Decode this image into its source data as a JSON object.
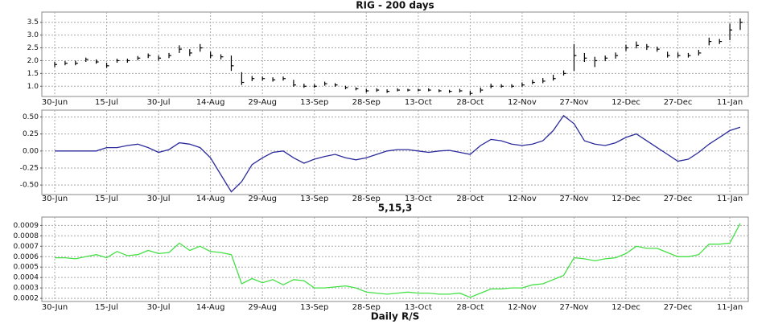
{
  "chart_data": [
    {
      "type": "ohlc",
      "title": "RIG - 200 days",
      "color": "#000000",
      "grid": true,
      "categories": [
        "30-Jun",
        null,
        null,
        null,
        null,
        "15-Jul",
        null,
        null,
        null,
        null,
        "30-Jul",
        null,
        null,
        null,
        null,
        "14-Aug",
        null,
        null,
        null,
        null,
        "29-Aug",
        null,
        null,
        null,
        null,
        "13-Sep",
        null,
        null,
        null,
        null,
        "28-Sep",
        null,
        null,
        null,
        null,
        "13-Oct",
        null,
        null,
        null,
        null,
        "28-Oct",
        null,
        null,
        null,
        null,
        "12-Nov",
        null,
        null,
        null,
        null,
        "27-Nov",
        null,
        null,
        null,
        null,
        "12-Dec",
        null,
        null,
        null,
        null,
        "27-Dec",
        null,
        null,
        null,
        null,
        "11-Jan",
        null
      ],
      "high": [
        1.95,
        1.98,
        2.0,
        2.12,
        2.05,
        1.92,
        2.08,
        2.08,
        2.18,
        2.28,
        2.2,
        2.3,
        2.6,
        2.45,
        2.65,
        2.35,
        2.25,
        2.2,
        1.55,
        1.4,
        1.38,
        1.35,
        1.38,
        1.25,
        1.1,
        1.08,
        1.18,
        1.12,
        1.02,
        0.96,
        0.9,
        0.92,
        0.88,
        0.92,
        0.9,
        0.9,
        0.92,
        0.88,
        0.86,
        0.9,
        0.82,
        0.95,
        1.1,
        1.08,
        1.08,
        1.15,
        1.25,
        1.32,
        1.45,
        1.62,
        2.65,
        2.3,
        2.15,
        2.2,
        2.32,
        2.62,
        2.75,
        2.65,
        2.55,
        2.35,
        2.32,
        2.3,
        2.42,
        2.9,
        2.85,
        3.45,
        3.65
      ],
      "low": [
        1.75,
        1.82,
        1.82,
        1.95,
        1.88,
        1.72,
        1.92,
        1.92,
        2.02,
        2.1,
        2.0,
        2.1,
        2.3,
        2.18,
        2.35,
        2.1,
        2.05,
        1.6,
        1.05,
        1.2,
        1.22,
        1.18,
        1.22,
        0.98,
        0.94,
        0.94,
        1.02,
        0.98,
        0.88,
        0.84,
        0.76,
        0.78,
        0.74,
        0.8,
        0.8,
        0.8,
        0.8,
        0.77,
        0.74,
        0.76,
        0.65,
        0.75,
        0.92,
        0.94,
        0.94,
        0.98,
        1.08,
        1.12,
        1.22,
        1.42,
        1.6,
        1.95,
        1.75,
        1.98,
        2.08,
        2.38,
        2.48,
        2.42,
        2.35,
        2.12,
        2.12,
        2.12,
        2.2,
        2.6,
        2.65,
        2.8,
        3.2
      ],
      "close": [
        1.85,
        1.9,
        1.9,
        2.05,
        1.95,
        1.8,
        2.0,
        2.0,
        2.1,
        2.2,
        2.1,
        2.2,
        2.45,
        2.3,
        2.5,
        2.2,
        2.15,
        1.8,
        1.15,
        1.3,
        1.3,
        1.25,
        1.3,
        1.05,
        1.0,
        1.0,
        1.1,
        1.05,
        0.95,
        0.9,
        0.82,
        0.85,
        0.8,
        0.85,
        0.85,
        0.85,
        0.85,
        0.82,
        0.8,
        0.82,
        0.72,
        0.85,
        1.0,
        1.0,
        1.0,
        1.05,
        1.15,
        1.2,
        1.3,
        1.5,
        2.2,
        2.1,
        2.0,
        2.1,
        2.2,
        2.5,
        2.6,
        2.55,
        2.45,
        2.2,
        2.2,
        2.2,
        2.3,
        2.75,
        2.75,
        3.2,
        3.5
      ],
      "ylim": [
        0.6,
        3.9
      ],
      "yticks": [
        {
          "value": 1.0,
          "label": "1.0"
        },
        1.5,
        {
          "value": 2.0,
          "label": "2.0"
        },
        2.5,
        {
          "value": 3.0,
          "label": "3.0"
        },
        3.5
      ]
    },
    {
      "type": "line",
      "title": "5,15,3",
      "color": "#2b2b9c",
      "grid": true,
      "categories": [
        "30-Jun",
        null,
        null,
        null,
        null,
        "15-Jul",
        null,
        null,
        null,
        null,
        "30-Jul",
        null,
        null,
        null,
        null,
        "14-Aug",
        null,
        null,
        null,
        null,
        "29-Aug",
        null,
        null,
        null,
        null,
        "13-Sep",
        null,
        null,
        null,
        null,
        "28-Sep",
        null,
        null,
        null,
        null,
        "13-Oct",
        null,
        null,
        null,
        null,
        "28-Oct",
        null,
        null,
        null,
        null,
        "12-Nov",
        null,
        null,
        null,
        null,
        "27-Nov",
        null,
        null,
        null,
        null,
        "12-Dec",
        null,
        null,
        null,
        null,
        "27-Dec",
        null,
        null,
        null,
        null,
        "11-Jan",
        null
      ],
      "values": [
        0,
        0,
        0,
        0,
        0,
        0.05,
        0.05,
        0.08,
        0.1,
        0.05,
        -0.02,
        0.02,
        0.12,
        0.1,
        0.05,
        -0.1,
        -0.35,
        -0.6,
        -0.45,
        -0.2,
        -0.1,
        -0.02,
        0.0,
        -0.1,
        -0.18,
        -0.12,
        -0.08,
        -0.05,
        -0.1,
        -0.13,
        -0.1,
        -0.05,
        0.0,
        0.02,
        0.02,
        0.0,
        -0.02,
        0.0,
        0.01,
        -0.02,
        -0.05,
        0.08,
        0.17,
        0.15,
        0.1,
        0.08,
        0.1,
        0.15,
        0.3,
        0.52,
        0.4,
        0.15,
        0.1,
        0.08,
        0.12,
        0.2,
        0.25,
        0.15,
        0.05,
        -0.05,
        -0.15,
        -0.12,
        -0.02,
        0.1,
        0.2,
        0.3,
        0.35
      ],
      "ylim": [
        -0.64,
        0.6
      ],
      "yticks": [
        {
          "value": -0.5,
          "label": "-0.50"
        },
        {
          "value": -0.25,
          "label": "-0.25"
        },
        {
          "value": 0,
          "label": "0.00"
        },
        {
          "value": 0.25,
          "label": "0.25"
        },
        {
          "value": 0.5,
          "label": "0.50"
        }
      ]
    },
    {
      "type": "line",
      "title": "Daily R/S",
      "color": "#44e044",
      "grid": true,
      "categories": [
        "30-Jun",
        null,
        null,
        null,
        null,
        "15-Jul",
        null,
        null,
        null,
        null,
        "30-Jul",
        null,
        null,
        null,
        null,
        "14-Aug",
        null,
        null,
        null,
        null,
        "29-Aug",
        null,
        null,
        null,
        null,
        "13-Sep",
        null,
        null,
        null,
        null,
        "28-Sep",
        null,
        null,
        null,
        null,
        "13-Oct",
        null,
        null,
        null,
        null,
        "28-Oct",
        null,
        null,
        null,
        null,
        "12-Nov",
        null,
        null,
        null,
        null,
        "27-Nov",
        null,
        null,
        null,
        null,
        "12-Dec",
        null,
        null,
        null,
        null,
        "27-Dec",
        null,
        null,
        null,
        null,
        "11-Jan",
        null
      ],
      "values": [
        0.00059,
        0.00059,
        0.00058,
        0.0006,
        0.00062,
        0.00059,
        0.00065,
        0.00061,
        0.00062,
        0.00066,
        0.00063,
        0.00064,
        0.00073,
        0.00066,
        0.0007,
        0.00065,
        0.00064,
        0.00062,
        0.00034,
        0.00039,
        0.00035,
        0.00038,
        0.00033,
        0.00038,
        0.00037,
        0.0003,
        0.0003,
        0.00031,
        0.00032,
        0.0003,
        0.00026,
        0.00025,
        0.00024,
        0.00025,
        0.00026,
        0.00025,
        0.00025,
        0.00024,
        0.00024,
        0.00025,
        0.00021,
        0.00025,
        0.00029,
        0.00029,
        0.0003,
        0.0003,
        0.00033,
        0.00034,
        0.00038,
        0.00042,
        0.00059,
        0.00058,
        0.00056,
        0.00058,
        0.00059,
        0.00063,
        0.0007,
        0.00068,
        0.00068,
        0.00064,
        0.0006,
        0.0006,
        0.00062,
        0.00072,
        0.00072,
        0.00073,
        0.00092
      ],
      "ylim": [
        0.00017,
        0.00098
      ],
      "yticks": [
        0.0002,
        0.0003,
        0.0004,
        0.0005,
        0.0006,
        0.0007,
        0.0008,
        0.0009
      ]
    }
  ]
}
